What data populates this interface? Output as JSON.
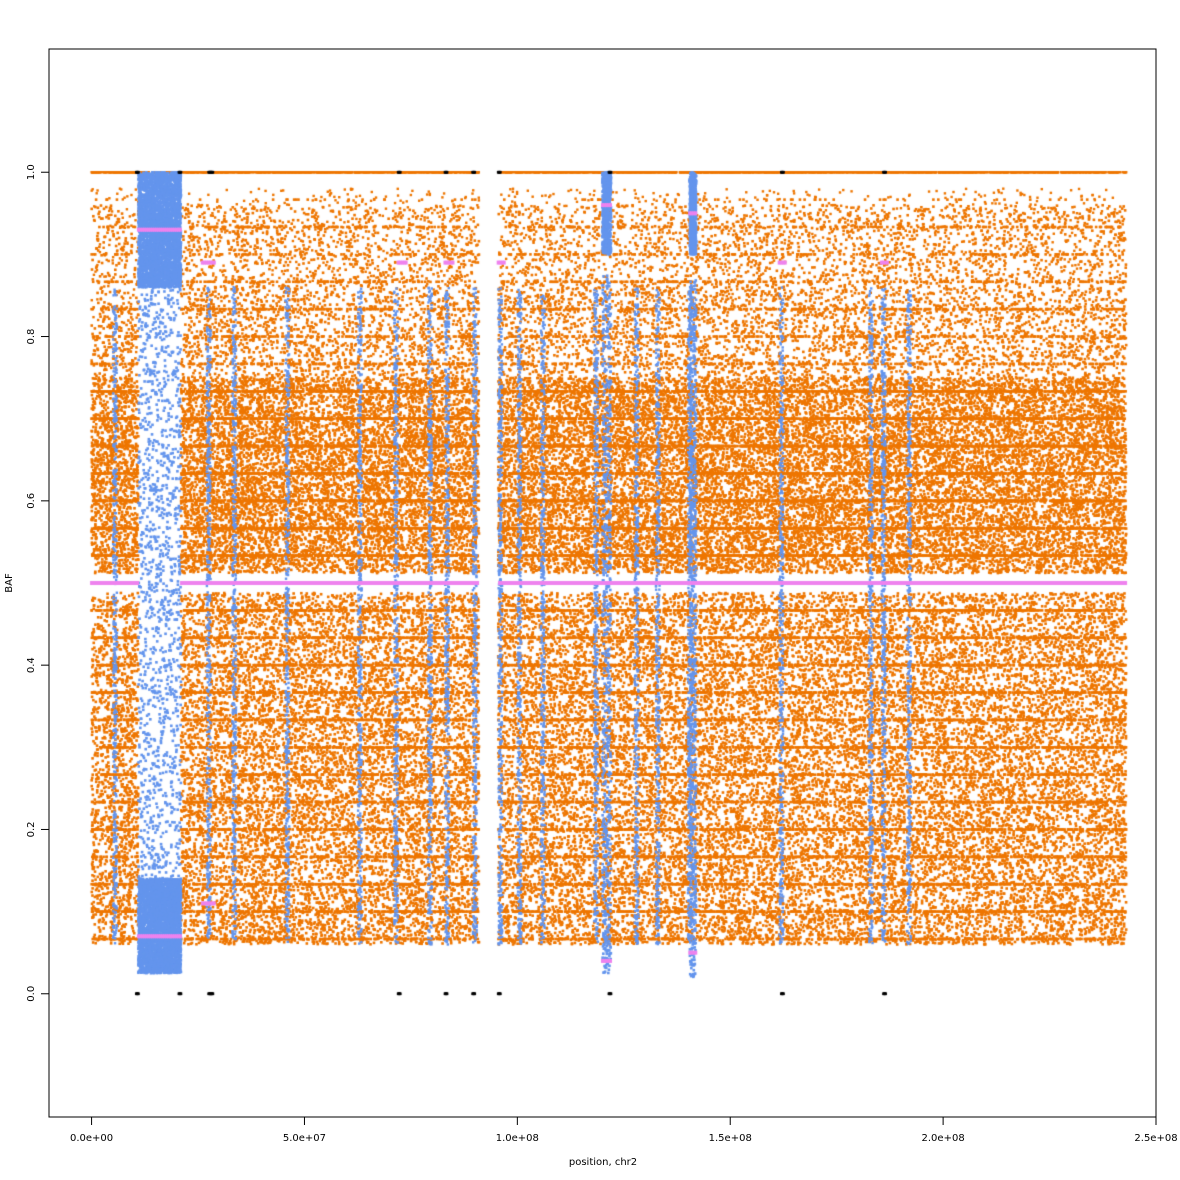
{
  "chart_data": {
    "type": "scatter",
    "title": "",
    "xlabel": "position, chr2",
    "ylabel": "BAF",
    "xlim": [
      -10000000,
      250000000
    ],
    "ylim": [
      -0.15,
      1.15
    ],
    "grid": false,
    "legend": "none",
    "x_ticks": [
      {
        "value": 0,
        "label": "0.0e+00"
      },
      {
        "value": 50000000,
        "label": "5.0e+07"
      },
      {
        "value": 100000000,
        "label": "1.0e+08"
      },
      {
        "value": 150000000,
        "label": "1.5e+08"
      },
      {
        "value": 200000000,
        "label": "2.0e+08"
      },
      {
        "value": 250000000,
        "label": "2.5e+08"
      }
    ],
    "y_ticks": [
      {
        "value": 0.0,
        "label": "0.0"
      },
      {
        "value": 0.2,
        "label": "0.2"
      },
      {
        "value": 0.4,
        "label": "0.4"
      },
      {
        "value": 0.6,
        "label": "0.6"
      },
      {
        "value": 0.8,
        "label": "0.8"
      },
      {
        "value": 1.0,
        "label": "1.0"
      }
    ],
    "x_range_data": [
      0,
      243000000
    ],
    "gaps": [
      [
        91000000,
        95500000
      ]
    ],
    "series": [
      {
        "color": "#EE7600",
        "description_points": "heterozygous SNP BAF spread 0.05–0.95 across chromosome",
        "bands": [
          [
            0.05,
            0.49
          ],
          [
            0.51,
            0.75
          ]
        ]
      },
      {
        "color": "#6495ED",
        "regions": [
          {
            "x": [
              11000000,
              21000000
            ],
            "upper": [
              0.86,
              1.0
            ],
            "lower": [
              0.025,
              0.14
            ]
          },
          {
            "x": [
              120000000,
              122000000
            ],
            "upper": [
              0.9,
              1.0
            ],
            "lower": [
              0.025,
              0.1
            ]
          },
          {
            "x": [
              140500000,
              142000000
            ],
            "upper": [
              0.9,
              1.0
            ],
            "lower": [
              0.02,
              0.1
            ]
          }
        ],
        "streaks_x": [
          5500000,
          27500000,
          33500000,
          46000000,
          63000000,
          71500000,
          79500000,
          83500000,
          90000000,
          96000000,
          100500000,
          106000000,
          118500000,
          128000000,
          133000000,
          140500000,
          162000000,
          183000000,
          186000000,
          192000000
        ]
      },
      {
        "color": "#EE82EE",
        "segments": [
          {
            "x": [
              0,
              243000000
            ],
            "y": 0.5
          },
          {
            "x": [
              11000000,
              21000000
            ],
            "y": 0.93
          },
          {
            "x": [
              11000000,
              21000000
            ],
            "y": 0.07
          },
          {
            "x": [
              26000000,
              29000000
            ],
            "y": 0.89
          },
          {
            "x": [
              26000000,
              29000000
            ],
            "y": 0.11
          },
          {
            "x": [
              72000000,
              74000000
            ],
            "y": 0.89
          },
          {
            "x": [
              83000000,
              85000000
            ],
            "y": 0.89
          },
          {
            "x": [
              95500000,
              97000000
            ],
            "y": 0.89
          },
          {
            "x": [
              120000000,
              122000000
            ],
            "y": 0.96
          },
          {
            "x": [
              120000000,
              122000000
            ],
            "y": 0.04
          },
          {
            "x": [
              140500000,
              142000000
            ],
            "y": 0.95
          },
          {
            "x": [
              140500000,
              142000000
            ],
            "y": 0.05
          },
          {
            "x": [
              161500000,
              163000000
            ],
            "y": 0.89
          },
          {
            "x": [
              185500000,
              187000000
            ],
            "y": 0.89
          }
        ]
      },
      {
        "color": "#000000",
        "points_y0": [
          10500000,
          20500000,
          27500000,
          28000000,
          72000000,
          83000000,
          89500000,
          95500000,
          121500000,
          162000000,
          186000000
        ],
        "points_y1": [
          10500000,
          20500000,
          27500000,
          28000000,
          72000000,
          83000000,
          89500000,
          95500000,
          121500000,
          162000000,
          186000000
        ]
      }
    ]
  }
}
